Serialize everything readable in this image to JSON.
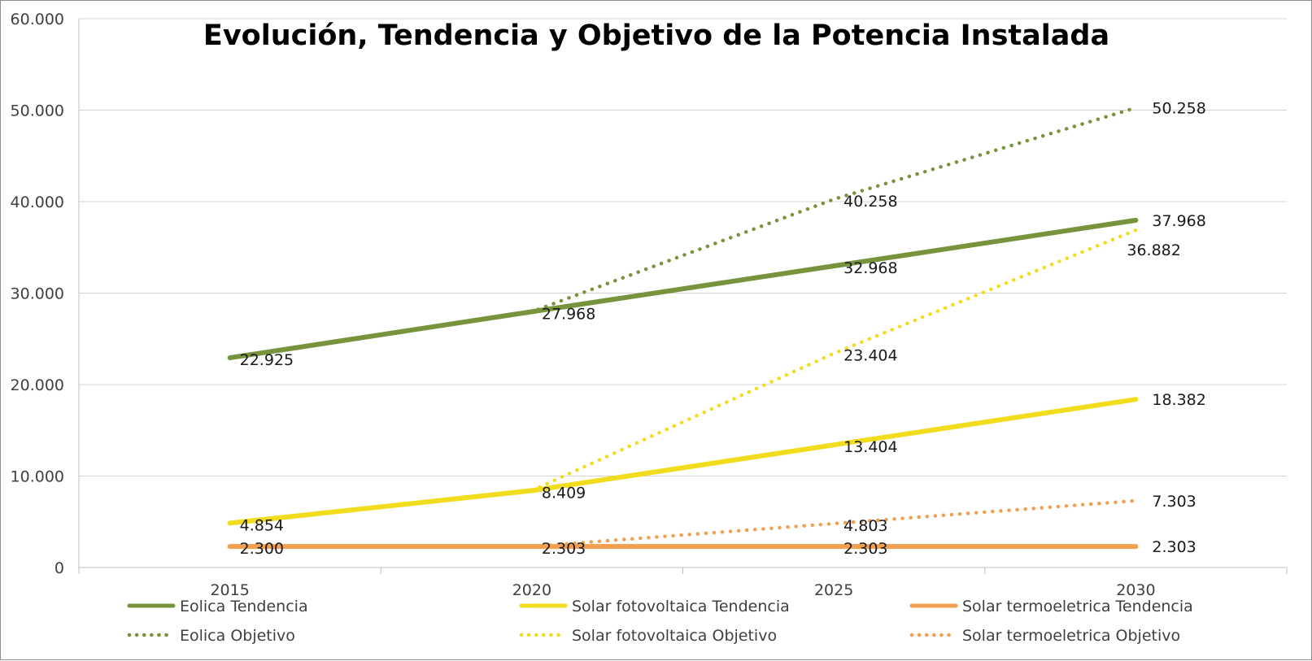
{
  "chart_data": {
    "type": "line",
    "title": "Evolución, Tendencia y Objetivo de la Potencia Instalada",
    "xlabel": "",
    "ylabel": "",
    "categories": [
      "2015",
      "2020",
      "2025",
      "2030"
    ],
    "ylim": [
      0,
      60000
    ],
    "yticks": [
      "0",
      "10.000",
      "20.000",
      "30.000",
      "40.000",
      "50.000",
      "60.000"
    ],
    "grid": true,
    "legend_position": "bottom",
    "series": [
      {
        "name": "Eolica Tendencia",
        "color": "#77933c",
        "style": "solid",
        "values": [
          22925,
          27968,
          32968,
          37968
        ],
        "labels": [
          "22.925",
          "27.968",
          "32.968",
          "37.968"
        ]
      },
      {
        "name": "Solar fotovoltaica Tendencia",
        "color": "#f2dc1e",
        "style": "solid",
        "values": [
          4854,
          8409,
          13404,
          18382
        ],
        "labels": [
          "4.854",
          "8.409",
          "13.404",
          "18.382"
        ]
      },
      {
        "name": "Solar termoeletrica Tendencia",
        "color": "#f0a050",
        "style": "solid",
        "values": [
          2300,
          2303,
          2303,
          2303
        ],
        "labels": [
          "2.300",
          "2.303",
          "2.303",
          "2.303"
        ]
      },
      {
        "name": "Eolica Objetivo",
        "color": "#77933c",
        "style": "dotted",
        "values": [
          22925,
          27968,
          40258,
          50258
        ],
        "labels": [
          "",
          "",
          "40.258",
          "50.258"
        ]
      },
      {
        "name": "Solar fotovoltaica Objetivo",
        "color": "#f2dc1e",
        "style": "dotted",
        "values": [
          4854,
          8409,
          23404,
          36882
        ],
        "labels": [
          "",
          "",
          "23.404",
          "36.882"
        ]
      },
      {
        "name": "Solar termoeletrica Objetivo",
        "color": "#f0a050",
        "style": "dotted",
        "values": [
          2300,
          2303,
          4803,
          7303
        ],
        "labels": [
          "",
          "",
          "4.803",
          "7.303"
        ]
      }
    ]
  }
}
